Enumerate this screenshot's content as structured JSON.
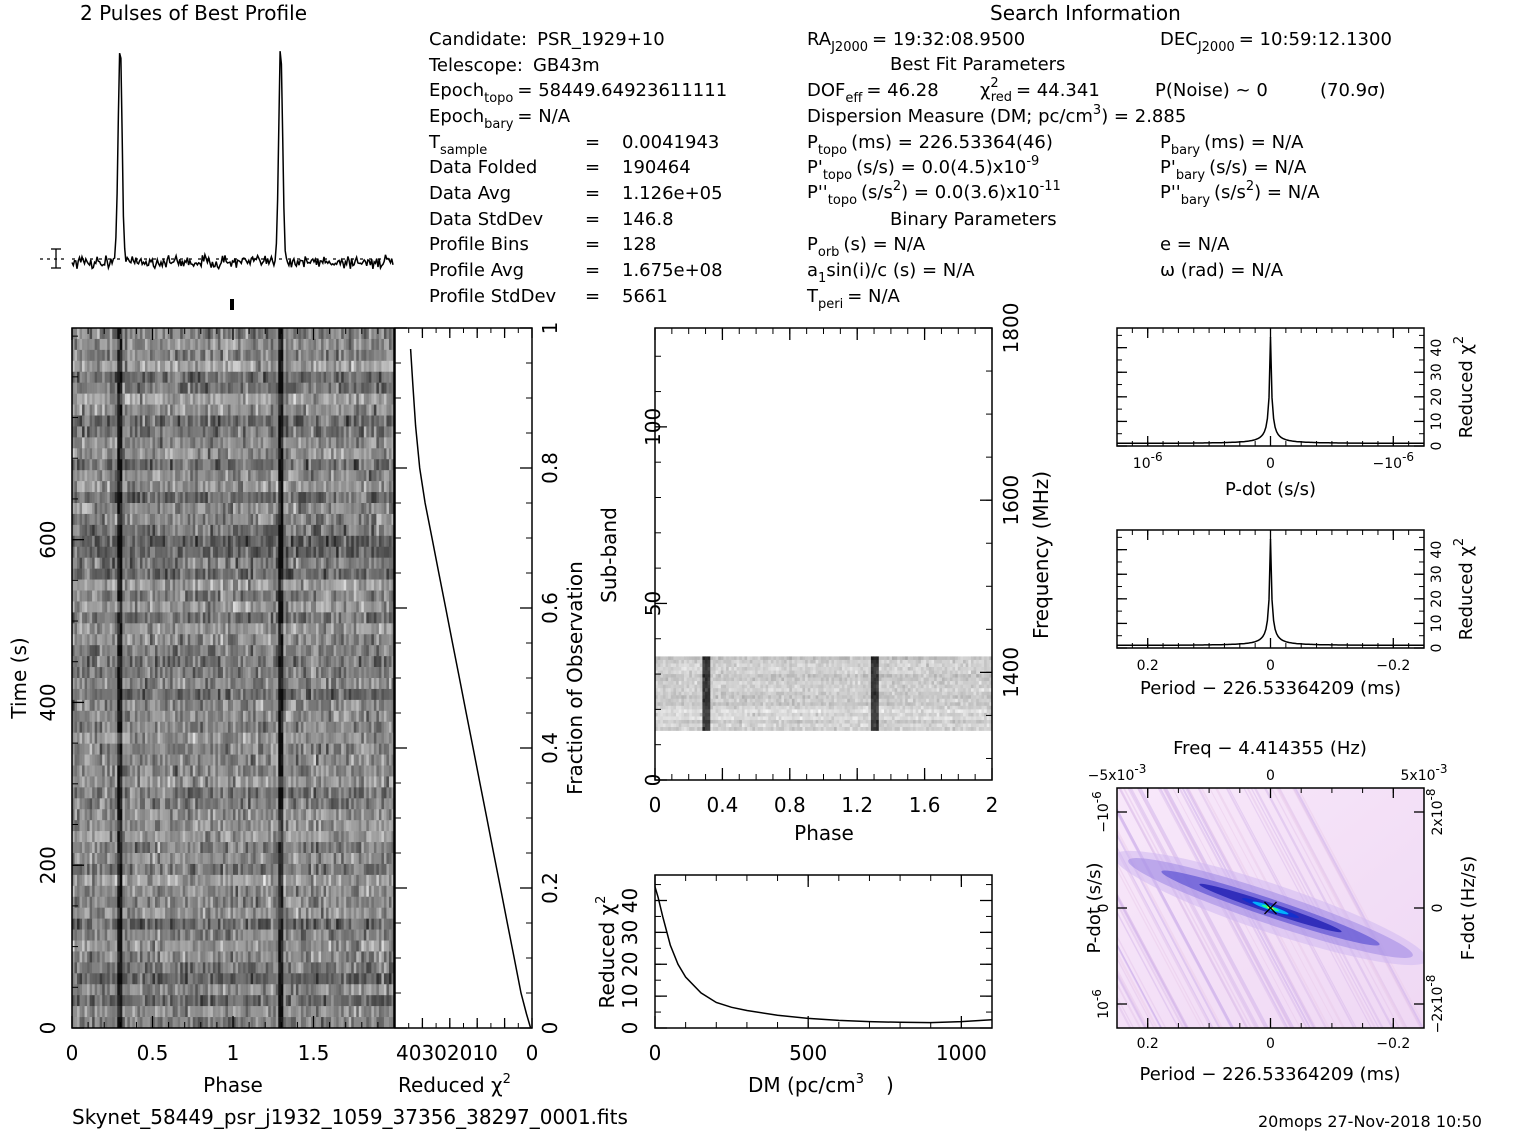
{
  "header": {
    "profile_title": "2 Pulses of Best Profile",
    "search_title": "Search Information",
    "best_fit_title": "Best Fit Parameters",
    "binary_title": "Binary Parameters"
  },
  "info_left": [
    {
      "label": "Candidate:",
      "sub": "",
      "eq": "",
      "value": "PSR_1929+10"
    },
    {
      "label": "Telescope:",
      "sub": "",
      "eq": "",
      "value": "GB43m"
    },
    {
      "label": "Epoch",
      "sub": "topo",
      "eq": "=",
      "value": "58449.64923611111"
    },
    {
      "label": "Epoch",
      "sub": "bary",
      "eq": "=",
      "value": "N/A"
    },
    {
      "label": "T",
      "sub": "sample",
      "eq": "=",
      "value": "0.0041943"
    },
    {
      "label": "Data Folded",
      "sub": "",
      "eq": "=",
      "value": "190464"
    },
    {
      "label": "Data Avg",
      "sub": "",
      "eq": "=",
      "value": "1.126e+05"
    },
    {
      "label": "Data StdDev",
      "sub": "",
      "eq": "=",
      "value": "146.8"
    },
    {
      "label": "Profile Bins",
      "sub": "",
      "eq": "=",
      "value": "128"
    },
    {
      "label": "Profile Avg",
      "sub": "",
      "eq": "=",
      "value": "1.675e+08"
    },
    {
      "label": "Profile StdDev",
      "sub": "",
      "eq": "=",
      "value": "5661"
    }
  ],
  "info_mid": {
    "ra_label": "RA",
    "ra_sub": "J2000",
    "ra_value": "= 19:32:08.9500",
    "dec_label": "DEC",
    "dec_sub": "J2000",
    "dec_value": "= 10:59:12.1300",
    "dof_label": "DOF",
    "dof_sub": "eff",
    "dof_value": "= 46.28",
    "chi_label": "χ",
    "chi_sup": "2",
    "chi_sub": "red",
    "chi_value": "= 44.341",
    "pnoise": "P(Noise) ~ 0",
    "sigma": "(70.9σ)",
    "dm": "Dispersion Measure (DM; pc/cm",
    "dm_sup": "3",
    "dm_value": ") = 2.885",
    "ptopo_label": "P",
    "ptopo_sub": "topo",
    "ptopo_value": "(ms) =  226.53364(46)",
    "pbary_label": "P",
    "pbary_sub": "bary",
    "pbary_value": "(ms) = N/A",
    "pdtopo_label": "P'",
    "pdtopo_sub": "topo",
    "pdtopo_value": "(s/s) = 0.0(4.5)x10",
    "pdtopo_sup": "-9",
    "pdbary_label": "P'",
    "pdbary_sub": "bary",
    "pdbary_value": "(s/s) = N/A",
    "pddtopo_label": "P''",
    "pddtopo_sub": "topo",
    "pddtopo_value": "(s/s",
    "pddtopo_sup1": "2",
    "pddtopo_value2": ") = 0.0(3.6)x10",
    "pddtopo_sup2": "-11",
    "pddbary_label": "P''",
    "pddbary_sub": "bary",
    "pddbary_value": "(s/s",
    "pddbary_sup": "2",
    "pddbary_value2": ") = N/A",
    "porb_label": "P",
    "porb_sub": "orb",
    "porb_value": "(s) = N/A",
    "e_value": "e = N/A",
    "a1_label": "a",
    "a1_sub": "1",
    "a1_value": "sin(i)/c (s) = N/A",
    "omega_value": "ω (rad) = N/A",
    "tperi_label": "T",
    "tperi_sub": "peri",
    "tperi_value": "= N/A"
  },
  "footer": {
    "filename": "Skynet_58449_psr_j1932_1059_37356_38297_0001.fits",
    "stamp": "20mops 27-Nov-2018 10:50"
  },
  "chart_data": [
    {
      "type": "line",
      "name": "profile",
      "xlim": [
        0,
        2
      ],
      "peaks": [
        0.3,
        1.3
      ],
      "peak_width": 0.012,
      "noise_level": 0.03
    },
    {
      "type": "heatmap",
      "name": "time-phase",
      "xlabel": "Phase",
      "ylabel": "Time (s)",
      "xlim": [
        0,
        2
      ],
      "ylim": [
        0,
        860
      ],
      "xticks": [
        "0",
        "0.5",
        "1",
        "1.5"
      ],
      "xtick_values": [
        0,
        0.5,
        1,
        1.5
      ],
      "yticks": [
        "0",
        "200",
        "400",
        "600"
      ],
      "ytick_values": [
        0,
        200,
        400,
        600
      ],
      "pulse_phases": [
        0.3,
        1.3
      ],
      "rows": 64,
      "cols": 128
    },
    {
      "type": "line",
      "name": "chi2-vs-time",
      "xlabel": "Reduced χ",
      "xlabel_sup": "2",
      "ylabel": "Fraction of Observation",
      "xlim": [
        50,
        0
      ],
      "ylim": [
        0,
        1
      ],
      "xticks": [
        "40302010",
        "0"
      ],
      "yticks": [
        "0",
        "0.2",
        "0.4",
        "0.6",
        "0.8",
        "1"
      ],
      "ytick_values": [
        0,
        0.2,
        0.4,
        0.6,
        0.8,
        1
      ],
      "x": [
        0.5,
        2,
        4,
        6.5,
        9,
        11.5,
        14,
        16.5,
        19,
        21.5,
        24,
        26.5,
        29,
        31.5,
        34,
        36.5,
        39,
        41,
        42.5,
        43.5,
        44.3
      ],
      "y": [
        0,
        0.02,
        0.05,
        0.1,
        0.15,
        0.2,
        0.25,
        0.3,
        0.35,
        0.4,
        0.45,
        0.5,
        0.55,
        0.6,
        0.65,
        0.7,
        0.75,
        0.8,
        0.86,
        0.92,
        0.97
      ]
    },
    {
      "type": "heatmap",
      "name": "subband-phase",
      "xlabel": "Phase",
      "ylabel": "Sub-band",
      "y2label": "Frequency (MHz)",
      "xlim": [
        0,
        2
      ],
      "ylim": [
        0,
        128
      ],
      "y2lim": [
        1275,
        1800
      ],
      "xticks": [
        "0",
        "0.4",
        "0.8",
        "1.2",
        "1.6",
        "2"
      ],
      "xtick_values": [
        0,
        0.4,
        0.8,
        1.2,
        1.6,
        2
      ],
      "yticks": [
        "0",
        "50",
        "100"
      ],
      "ytick_values": [
        0,
        50,
        100
      ],
      "y2ticks": [
        "1400",
        "1600",
        "1800"
      ],
      "y2tick_values": [
        1400,
        1600,
        1800
      ],
      "data_band": [
        14,
        35
      ],
      "pulse_phases": [
        0.3,
        1.3
      ]
    },
    {
      "type": "line",
      "name": "chi2-vs-dm",
      "xlabel": "DM (pc/cm",
      "xlabel_sup": "3",
      "ylabel": "Reduced χ",
      "ylabel_sup": "2",
      "xlim": [
        0,
        1100
      ],
      "ylim": [
        0,
        48
      ],
      "xticks": [
        "0",
        "500",
        "1000"
      ],
      "xtick_values": [
        0,
        500,
        1000
      ],
      "yticks": [
        "0",
        "10",
        "20",
        "30",
        "40"
      ],
      "ytick_values": [
        0,
        10,
        20,
        30,
        40
      ],
      "x": [
        0,
        10,
        25,
        50,
        75,
        100,
        150,
        200,
        250,
        300,
        400,
        500,
        600,
        700,
        800,
        900,
        1000,
        1100
      ],
      "y": [
        44.3,
        41,
        35,
        26,
        20,
        16,
        11,
        8,
        6.5,
        5.5,
        4,
        3,
        2.4,
        2,
        1.8,
        1.7,
        2,
        2.6
      ]
    },
    {
      "type": "line",
      "name": "chi2-vs-pdot",
      "xlabel": "P-dot (s/s)",
      "ylabel": "Reduced χ",
      "ylabel_sup": "2",
      "xlim": [
        1.25,
        -1.25
      ],
      "ylim": [
        0,
        48
      ],
      "xticks": [
        "10",
        "0",
        "−10"
      ],
      "xtick_exp": [
        "-6",
        "",
        "-6"
      ],
      "xtick_values": [
        1,
        0,
        -1
      ],
      "yticks": [
        "0",
        "10",
        "20",
        "30",
        "40"
      ],
      "ytick_values": [
        0,
        10,
        20,
        30,
        40
      ],
      "center_value": 44.3,
      "baseline": 1.0
    },
    {
      "type": "line",
      "name": "chi2-vs-period",
      "xlabel": "Period − 226.53364209 (ms)",
      "ylabel": "Reduced χ",
      "ylabel_sup": "2",
      "xlim": [
        0.25,
        -0.25
      ],
      "ylim": [
        0,
        48
      ],
      "xticks": [
        "0.2",
        "0",
        "−0.2"
      ],
      "xtick_values": [
        0.2,
        0,
        -0.2
      ],
      "yticks": [
        "0",
        "10",
        "20",
        "30",
        "40"
      ],
      "ytick_values": [
        0,
        10,
        20,
        30,
        40
      ],
      "center_value": 44.3,
      "baseline": 1.0
    },
    {
      "type": "heatmap",
      "name": "pdot-period",
      "title": "Freq − 4.414355 (Hz)",
      "xlabel": "Period − 226.53364209 (ms)",
      "ylabel": "P-dot (s/s)",
      "y2label": "F-dot (Hz/s)",
      "xlim": [
        0.25,
        -0.25
      ],
      "ylim": [
        -1.25,
        1.25
      ],
      "xticks": [
        "0.2",
        "0",
        "−0.2"
      ],
      "xtick_values": [
        0.2,
        0,
        -0.2
      ],
      "x2ticks": [
        "−5x10",
        "0",
        "5x10"
      ],
      "x2tick_exp": [
        "-3",
        "",
        "-3"
      ],
      "yticks": [
        "−10",
        "0",
        "10"
      ],
      "ytick_exp": [
        "-6",
        "",
        "-6"
      ],
      "y2ticks": [
        "2x10",
        "0",
        "−2x10"
      ],
      "y2tick_exp": [
        "-8",
        "",
        "-8"
      ],
      "colors": [
        "#ffffff",
        "#e8b8f0",
        "#a080e0",
        "#2020c0",
        "#00c0ff",
        "#00ff80",
        "#ffff00"
      ]
    }
  ]
}
